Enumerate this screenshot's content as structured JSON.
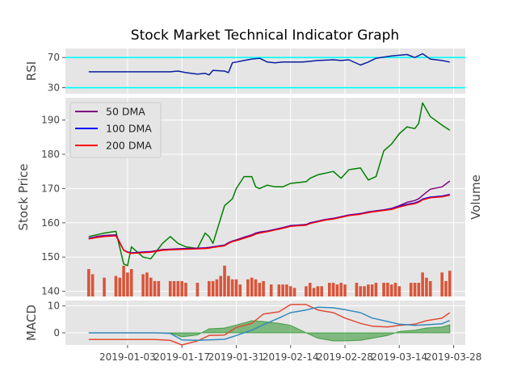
{
  "figure": {
    "title": "Stock Market Technical Indicator Graph",
    "x_ticks": [
      "2019-01-03",
      "2019-01-17",
      "2019-01-31",
      "2019-02-14",
      "2019-02-28",
      "2019-03-14",
      "2019-03-28"
    ],
    "colors": {
      "panel_bg": "#e5e5e5",
      "grid": "#ffffff",
      "rsi_line": "#0a1f9e",
      "rsi_bounds": "#00ffff",
      "price": "#008000",
      "dma50": "#800080",
      "dma100": "#0000ff",
      "dma200": "#ff0000",
      "volume": "#d9553a",
      "macd": "#e24a33",
      "signal": "#348abd",
      "hist": "#008000"
    }
  },
  "chart_data": [
    {
      "type": "line",
      "name": "rsi",
      "ylabel": "RSI",
      "ylim": [
        22,
        82
      ],
      "yticks": [
        30,
        70
      ],
      "bounds": [
        70,
        30
      ],
      "x": [
        "2018-12-24",
        "2018-12-27",
        "2018-12-31",
        "2019-01-03",
        "2019-01-07",
        "2019-01-10",
        "2019-01-14",
        "2019-01-16",
        "2019-01-18",
        "2019-01-21",
        "2019-01-23",
        "2019-01-24",
        "2019-01-25",
        "2019-01-28",
        "2019-01-29",
        "2019-01-30",
        "2019-01-31",
        "2019-02-02",
        "2019-02-04",
        "2019-02-06",
        "2019-02-08",
        "2019-02-10",
        "2019-02-12",
        "2019-02-14",
        "2019-02-17",
        "2019-02-19",
        "2019-02-21",
        "2019-02-25",
        "2019-02-27",
        "2019-03-01",
        "2019-03-04",
        "2019-03-06",
        "2019-03-08",
        "2019-03-12",
        "2019-03-14",
        "2019-03-16",
        "2019-03-18",
        "2019-03-20",
        "2019-03-22",
        "2019-03-25",
        "2019-03-27"
      ],
      "values": [
        51,
        51,
        51,
        51,
        51,
        51,
        51,
        52,
        50,
        48,
        49,
        47,
        53,
        52,
        50,
        63,
        64,
        66,
        68,
        69,
        64,
        63,
        64,
        64,
        64,
        65,
        66,
        67,
        66,
        67,
        60,
        64,
        69,
        72,
        73,
        74,
        70,
        75,
        68,
        66,
        64
      ]
    },
    {
      "type": "line",
      "name": "price",
      "ylabel": "Stock Price",
      "right_label": "Volume",
      "ylim": [
        138.5,
        196.5
      ],
      "yticks": [
        140,
        150,
        160,
        170,
        180,
        190
      ],
      "legend": [
        "50 DMA",
        "100 DMA",
        "200 DMA"
      ],
      "legend_position": "upper-left",
      "x": [
        "2018-12-24",
        "2018-12-26",
        "2018-12-28",
        "2018-12-31",
        "2019-01-02",
        "2019-01-03",
        "2019-01-04",
        "2019-01-07",
        "2019-01-09",
        "2019-01-12",
        "2019-01-14",
        "2019-01-16",
        "2019-01-18",
        "2019-01-21",
        "2019-01-23",
        "2019-01-24",
        "2019-01-25",
        "2019-01-28",
        "2019-01-29",
        "2019-01-30",
        "2019-01-31",
        "2019-02-02",
        "2019-02-04",
        "2019-02-05",
        "2019-02-06",
        "2019-02-08",
        "2019-02-10",
        "2019-02-12",
        "2019-02-14",
        "2019-02-18",
        "2019-02-19",
        "2019-02-21",
        "2019-02-23",
        "2019-02-25",
        "2019-02-27",
        "2019-03-01",
        "2019-03-04",
        "2019-03-06",
        "2019-03-08",
        "2019-03-10",
        "2019-03-12",
        "2019-03-14",
        "2019-03-16",
        "2019-03-18",
        "2019-03-19",
        "2019-03-20",
        "2019-03-22",
        "2019-03-25",
        "2019-03-27"
      ],
      "series": [
        {
          "key": "price",
          "values": [
            156,
            156.5,
            157,
            157.5,
            148,
            147.5,
            153,
            150,
            149.5,
            154,
            156,
            154,
            153,
            152.5,
            157,
            156,
            154,
            165,
            166,
            167,
            170,
            173.5,
            173.5,
            170.5,
            170,
            171,
            170.5,
            170.5,
            171.5,
            172,
            173,
            174,
            174.5,
            175,
            173,
            175.5,
            176,
            172.5,
            173.5,
            181,
            183,
            186,
            188,
            187.5,
            189,
            195,
            191,
            188.5,
            187
          ]
        },
        {
          "key": "dma50",
          "values": [
            155.5,
            156,
            156.3,
            156.5,
            152,
            151.5,
            151.2,
            151.5,
            151.6,
            152.2,
            152.3,
            152.4,
            152.5,
            152.6,
            152.7,
            152.8,
            153,
            153.5,
            154.2,
            154.7,
            155,
            155.8,
            156.5,
            157,
            157.3,
            157.6,
            158.1,
            158.6,
            159.2,
            159.5,
            160,
            160.5,
            161,
            161.3,
            161.8,
            162.3,
            162.7,
            163.2,
            163.5,
            163.8,
            164.2,
            165,
            166,
            166.5,
            167,
            168,
            169.8,
            170.5,
            172.2
          ]
        },
        {
          "key": "dma100",
          "values": [
            155.4,
            155.8,
            156.1,
            156.3,
            152,
            151.5,
            151.2,
            151.4,
            151.5,
            152,
            152.2,
            152.3,
            152.4,
            152.5,
            152.6,
            152.7,
            152.9,
            153.4,
            154.1,
            154.6,
            154.9,
            155.6,
            156.3,
            156.8,
            157.1,
            157.5,
            158,
            158.5,
            159.1,
            159.4,
            159.9,
            160.4,
            160.9,
            161.2,
            161.7,
            162.2,
            162.6,
            163.1,
            163.4,
            163.7,
            164,
            164.8,
            165.4,
            165.8,
            166.2,
            166.9,
            167.5,
            167.8,
            168.3
          ]
        },
        {
          "key": "dma200",
          "values": [
            155.3,
            155.7,
            156,
            156.2,
            152,
            151.4,
            151.1,
            151.3,
            151.4,
            152,
            152.1,
            152.2,
            152.3,
            152.4,
            152.5,
            152.6,
            152.8,
            153.3,
            154,
            154.5,
            154.8,
            155.5,
            156.2,
            156.7,
            157,
            157.4,
            157.9,
            158.4,
            159,
            159.3,
            159.8,
            160.3,
            160.8,
            161.1,
            161.6,
            162.1,
            162.5,
            163,
            163.3,
            163.6,
            163.9,
            164.6,
            165.2,
            165.6,
            166,
            166.7,
            167.3,
            167.6,
            168.1
          ]
        }
      ],
      "volume": {
        "x": [
          "2018-12-24",
          "2018-12-25",
          "2018-12-28",
          "2018-12-31",
          "2019-01-01",
          "2019-01-02",
          "2019-01-03",
          "2019-01-04",
          "2019-01-07",
          "2019-01-08",
          "2019-01-09",
          "2019-01-10",
          "2019-01-11",
          "2019-01-14",
          "2019-01-15",
          "2019-01-16",
          "2019-01-17",
          "2019-01-18",
          "2019-01-21",
          "2019-01-24",
          "2019-01-25",
          "2019-01-26",
          "2019-01-27",
          "2019-01-28",
          "2019-01-29",
          "2019-01-30",
          "2019-01-31",
          "2019-02-01",
          "2019-02-03",
          "2019-02-04",
          "2019-02-05",
          "2019-02-06",
          "2019-02-07",
          "2019-02-09",
          "2019-02-11",
          "2019-02-12",
          "2019-02-13",
          "2019-02-14",
          "2019-02-15",
          "2019-02-18",
          "2019-02-19",
          "2019-02-20",
          "2019-02-21",
          "2019-02-22",
          "2019-02-24",
          "2019-02-25",
          "2019-02-26",
          "2019-02-27",
          "2019-02-28",
          "2019-03-03",
          "2019-03-04",
          "2019-03-05",
          "2019-03-06",
          "2019-03-07",
          "2019-03-08",
          "2019-03-10",
          "2019-03-11",
          "2019-03-12",
          "2019-03-13",
          "2019-03-14",
          "2019-03-17",
          "2019-03-18",
          "2019-03-19",
          "2019-03-20",
          "2019-03-21",
          "2019-03-22",
          "2019-03-25",
          "2019-03-26",
          "2019-03-27"
        ],
        "values": [
          8,
          6.5,
          5.5,
          6,
          5.5,
          9,
          7,
          8,
          6.5,
          7,
          5.5,
          4.5,
          4.5,
          4.5,
          4.5,
          4.5,
          4.5,
          4,
          4,
          4.5,
          4.5,
          5,
          6,
          9,
          6,
          5,
          5,
          3.5,
          5,
          5.5,
          5,
          4,
          4.5,
          3.5,
          3.5,
          3.5,
          3.5,
          3,
          2.5,
          3,
          4,
          2.5,
          3,
          3,
          4,
          4,
          3.5,
          4,
          3.5,
          4,
          3,
          3,
          3.5,
          3.5,
          4,
          4,
          4,
          3.5,
          4,
          3,
          4,
          4,
          4,
          7,
          5.5,
          4.5,
          7,
          4.5,
          7.5
        ]
      }
    },
    {
      "type": "line",
      "name": "macd",
      "ylabel": "MACD",
      "ylim": [
        -4.5,
        12
      ],
      "yticks": [
        0,
        10
      ],
      "x": [
        "2018-12-24",
        "2018-12-27",
        "2018-12-31",
        "2019-01-03",
        "2019-01-07",
        "2019-01-10",
        "2019-01-14",
        "2019-01-17",
        "2019-01-21",
        "2019-01-24",
        "2019-01-28",
        "2019-01-31",
        "2019-02-04",
        "2019-02-07",
        "2019-02-11",
        "2019-02-14",
        "2019-02-18",
        "2019-02-21",
        "2019-02-25",
        "2019-02-28",
        "2019-03-04",
        "2019-03-07",
        "2019-03-11",
        "2019-03-14",
        "2019-03-18",
        "2019-03-21",
        "2019-03-25",
        "2019-03-27"
      ],
      "series": [
        {
          "key": "macd",
          "values": [
            -2.5,
            -2.5,
            -2.5,
            -2.5,
            -2.5,
            -2.5,
            -2.8,
            -4.5,
            -3,
            -1,
            -0.8,
            2,
            3.5,
            7,
            7.8,
            10.5,
            10.5,
            8.5,
            7.5,
            5.5,
            3.5,
            2.5,
            2.2,
            2.8,
            3.2,
            4.5,
            5.5,
            7.5
          ]
        },
        {
          "key": "signal",
          "values": [
            0,
            0,
            0,
            0,
            0,
            0,
            -0.2,
            -2.6,
            -2.8,
            -2.6,
            -2.4,
            -1,
            1,
            3,
            5.5,
            7.5,
            8.5,
            9.5,
            9.3,
            8.6,
            7.5,
            5.5,
            4.2,
            3.2,
            2.8,
            3,
            3.4,
            4.6
          ]
        },
        {
          "key": "hist",
          "values": [
            0,
            0,
            0,
            0,
            0,
            0,
            0,
            -1.5,
            -0.8,
            1.5,
            1.8,
            2.9,
            4.5,
            4.2,
            3.5,
            2.8,
            0,
            -2,
            -3,
            -3,
            -2.8,
            -2,
            -1,
            0.5,
            1,
            1.8,
            2.2,
            3
          ]
        }
      ]
    }
  ]
}
